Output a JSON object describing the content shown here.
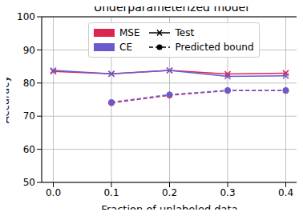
{
  "chart_data": {
    "type": "line",
    "title": "Underparameterized model",
    "x_label": "Fraction of unlabeled data",
    "y_label": "Accuracy",
    "x": [
      0.0,
      0.1,
      0.2,
      0.3,
      0.4
    ],
    "xlim": [
      -0.02,
      0.42
    ],
    "xticks": [
      {
        "value": 0,
        "label": "0.0"
      },
      {
        "value": 0.1,
        "label": "0.1"
      },
      {
        "value": 0.2,
        "label": "0.2"
      },
      {
        "value": 0.3,
        "label": "0.3"
      },
      {
        "value": 0.4,
        "label": "0.4"
      }
    ],
    "ylim": [
      50,
      100
    ],
    "yticks": [
      50,
      60,
      70,
      80,
      90,
      100
    ],
    "grid": true,
    "legend": "upper left",
    "series": [
      {
        "name": "MSE",
        "group": "Test",
        "color": "#dc2650",
        "line_style": "solid",
        "marker": "x",
        "values": [
          83.5,
          82.8,
          83.8,
          82.7,
          83.0
        ]
      },
      {
        "name": "CE",
        "group": "Test",
        "color": "#6a5acd",
        "line_style": "solid",
        "marker": "x",
        "values": [
          83.8,
          82.8,
          83.8,
          82.0,
          82.2
        ]
      },
      {
        "name": "MSE",
        "group": "Predicted bound",
        "color": "#dc2650",
        "line_style": "dashed",
        "marker": "o",
        "values": [
          null,
          74.0,
          76.3,
          77.7,
          77.7
        ]
      },
      {
        "name": "CE",
        "group": "Predicted bound",
        "color": "#6a5acd",
        "line_style": "dashed",
        "marker": "o",
        "values": [
          null,
          74.2,
          76.5,
          77.8,
          77.8
        ]
      }
    ]
  }
}
